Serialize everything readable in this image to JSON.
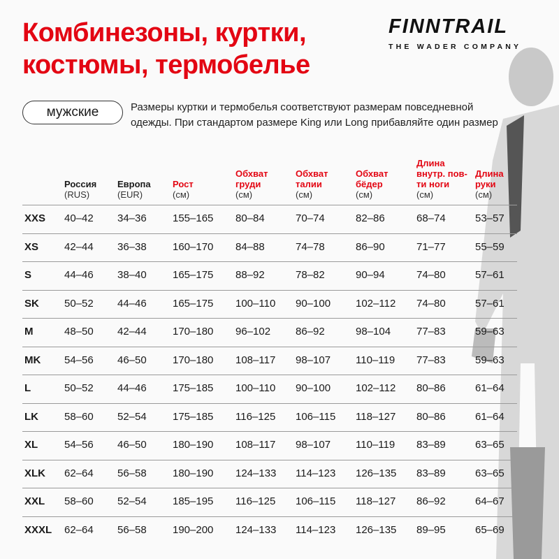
{
  "title_lines": [
    "Комбинезоны, куртки,",
    "костюмы, термобелье"
  ],
  "brand": {
    "name": "FINNTRAIL",
    "tagline": "THE WADER COMPANY"
  },
  "category_pill": "мужские",
  "note_lines": [
    "Размеры куртки и термобелья соответствуют размерам повседневной",
    "одежды. При стандартом размере King или Long прибавляйте один размер"
  ],
  "colors": {
    "accent": "#e30613",
    "text": "#1a1a1a",
    "divider": "#9a9a9a"
  },
  "columns": [
    {
      "label": "Россия",
      "unit": "(RUS)",
      "accent": false
    },
    {
      "label": "Европа",
      "unit": "(EUR)",
      "accent": false
    },
    {
      "label": "Рост",
      "unit": "(см)",
      "accent": true
    },
    {
      "label": "Обхват груди",
      "unit": "(см)",
      "accent": true
    },
    {
      "label": "Обхват талии",
      "unit": "(см)",
      "accent": true
    },
    {
      "label": "Обхват бёдер",
      "unit": "(см)",
      "accent": true
    },
    {
      "label": "Длина внутр. пов-ти ноги",
      "unit": "(см)",
      "accent": true
    },
    {
      "label": "Длина руки",
      "unit": "(см)",
      "accent": true
    }
  ],
  "rows": [
    [
      "XXS",
      "40–42",
      "34–36",
      "155–165",
      "80–84",
      "70–74",
      "82–86",
      "68–74",
      "53–57"
    ],
    [
      "XS",
      "42–44",
      "36–38",
      "160–170",
      "84–88",
      "74–78",
      "86–90",
      "71–77",
      "55–59"
    ],
    [
      "S",
      "44–46",
      "38–40",
      "165–175",
      "88–92",
      "78–82",
      "90–94",
      "74–80",
      "57–61"
    ],
    [
      "SK",
      "50–52",
      "44–46",
      "165–175",
      "100–110",
      "90–100",
      "102–112",
      "74–80",
      "57–61"
    ],
    [
      "M",
      "48–50",
      "42–44",
      "170–180",
      "96–102",
      "86–92",
      "98–104",
      "77–83",
      "59–63"
    ],
    [
      "MK",
      "54–56",
      "46–50",
      "170–180",
      "108–117",
      "98–107",
      "110–119",
      "77–83",
      "59–63"
    ],
    [
      "L",
      "50–52",
      "44–46",
      "175–185",
      "100–110",
      "90–100",
      "102–112",
      "80–86",
      "61–64"
    ],
    [
      "LK",
      "58–60",
      "52–54",
      "175–185",
      "116–125",
      "106–115",
      "118–127",
      "80–86",
      "61–64"
    ],
    [
      "XL",
      "54–56",
      "46–50",
      "180–190",
      "108–117",
      "98–107",
      "110–119",
      "83–89",
      "63–65"
    ],
    [
      "XLK",
      "62–64",
      "56–58",
      "180–190",
      "124–133",
      "114–123",
      "126–135",
      "83–89",
      "63–65"
    ],
    [
      "XXL",
      "58–60",
      "52–54",
      "185–195",
      "116–125",
      "106–115",
      "118–127",
      "86–92",
      "64–67"
    ],
    [
      "XXXL",
      "62–64",
      "56–58",
      "190–200",
      "124–133",
      "114–123",
      "126–135",
      "89–95",
      "65–69"
    ]
  ]
}
